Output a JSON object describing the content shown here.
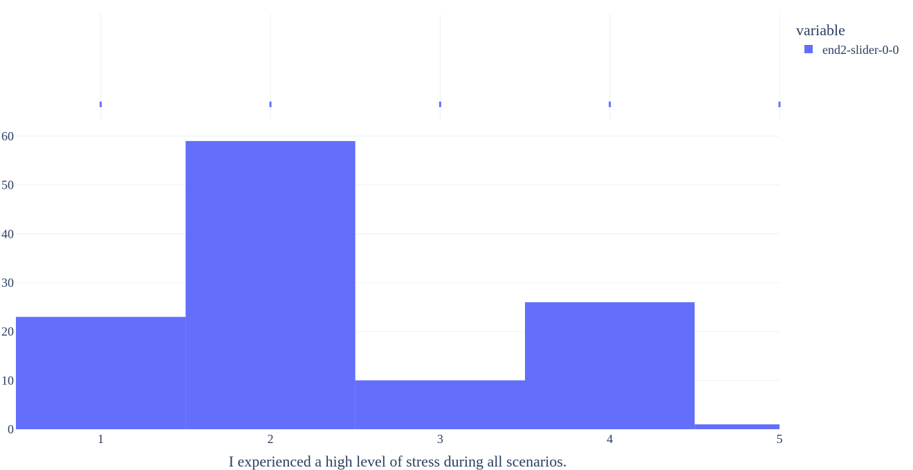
{
  "chart_data": {
    "type": "bar",
    "subtype": "histogram with rug plot",
    "categories": [
      "1",
      "2",
      "3",
      "4",
      "5"
    ],
    "series": [
      {
        "name": "end2-slider-0-0",
        "values": [
          23,
          59,
          10,
          26,
          1
        ],
        "color": "#636efa"
      }
    ],
    "x": [
      1,
      2,
      3,
      4,
      5
    ],
    "rug_values": [
      1,
      2,
      3,
      4,
      5
    ],
    "xlabel": "I experienced a high level of stress during all scenarios.",
    "ylabel": "",
    "ylim": [
      0,
      60
    ],
    "yticks": [
      0,
      10,
      20,
      30,
      40,
      50,
      60
    ],
    "grid": true,
    "legend": {
      "title": "variable",
      "placement": "top-right"
    }
  }
}
